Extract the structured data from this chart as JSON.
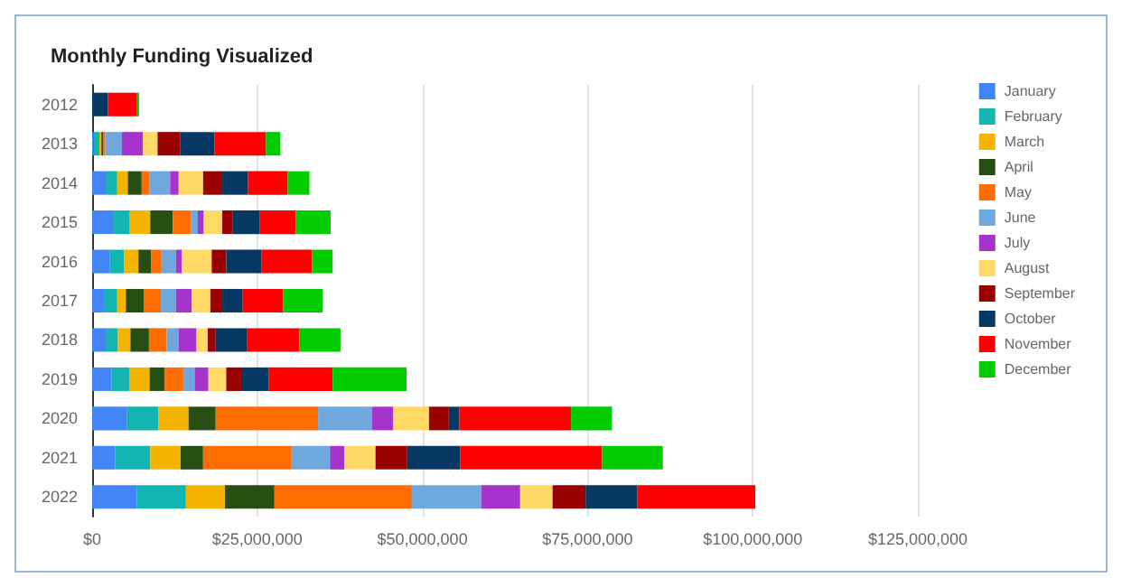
{
  "chart_data": {
    "type": "bar",
    "title": "Monthly Funding Visualized",
    "orientation": "horizontal",
    "stacked": true,
    "categories": [
      "2012",
      "2013",
      "2014",
      "2015",
      "2016",
      "2017",
      "2018",
      "2019",
      "2020",
      "2021",
      "2022"
    ],
    "series": [
      {
        "name": "January",
        "color": "#4285f4",
        "values": [
          0,
          200000,
          2200000,
          3300000,
          2700000,
          1900000,
          2200000,
          2900000,
          5300000,
          3500000,
          6800000
        ]
      },
      {
        "name": "February",
        "color": "#12b5b0",
        "values": [
          0,
          900000,
          1600000,
          2400000,
          2100000,
          1900000,
          1700000,
          2700000,
          4700000,
          5300000,
          7400000
        ]
      },
      {
        "name": "March",
        "color": "#f4b400",
        "values": [
          0,
          300000,
          1600000,
          3100000,
          2200000,
          1300000,
          1900000,
          3100000,
          4600000,
          4600000,
          5900000
        ]
      },
      {
        "name": "April",
        "color": "#274e13",
        "values": [
          0,
          300000,
          2100000,
          3400000,
          1900000,
          2700000,
          2800000,
          2300000,
          4100000,
          3400000,
          7500000
        ]
      },
      {
        "name": "May",
        "color": "#ff6d01",
        "values": [
          0,
          300000,
          1200000,
          2800000,
          1600000,
          2600000,
          2700000,
          2800000,
          15500000,
          13400000,
          20800000
        ]
      },
      {
        "name": "June",
        "color": "#6fa8dc",
        "values": [
          0,
          2500000,
          3100000,
          1000000,
          2200000,
          2300000,
          1800000,
          1700000,
          8200000,
          5800000,
          10500000
        ]
      },
      {
        "name": "July",
        "color": "#a633cc",
        "values": [
          0,
          3200000,
          1300000,
          900000,
          900000,
          2400000,
          2700000,
          2100000,
          3200000,
          2200000,
          5900000
        ]
      },
      {
        "name": "August",
        "color": "#ffd966",
        "values": [
          0,
          2200000,
          3700000,
          2800000,
          4500000,
          2800000,
          1700000,
          2700000,
          5400000,
          4700000,
          4900000
        ]
      },
      {
        "name": "September",
        "color": "#990000",
        "values": [
          0,
          3400000,
          2900000,
          1600000,
          2200000,
          1800000,
          1200000,
          2400000,
          3000000,
          4800000,
          5000000
        ]
      },
      {
        "name": "October",
        "color": "#073763",
        "values": [
          2400000,
          5200000,
          3900000,
          4100000,
          5300000,
          3100000,
          4700000,
          4000000,
          1600000,
          8000000,
          7800000
        ]
      },
      {
        "name": "November",
        "color": "#ff0000",
        "values": [
          4300000,
          7800000,
          6000000,
          5400000,
          7700000,
          6100000,
          8000000,
          9700000,
          16900000,
          21500000,
          17900000
        ]
      },
      {
        "name": "December",
        "color": "#00cc00",
        "values": [
          400000,
          2200000,
          3300000,
          5300000,
          3100000,
          6000000,
          6200000,
          11200000,
          6200000,
          9200000,
          0
        ]
      }
    ],
    "xlim": [
      0,
      125000000
    ],
    "xticks": [
      {
        "value": 0,
        "label": "$0"
      },
      {
        "value": 25000000,
        "label": "$25,000,000"
      },
      {
        "value": 50000000,
        "label": "$50,000,000"
      },
      {
        "value": 75000000,
        "label": "$75,000,000"
      },
      {
        "value": 100000000,
        "label": "$100,000,000"
      },
      {
        "value": 125000000,
        "label": "$125,000,000"
      }
    ],
    "grid": "x",
    "legend": "right"
  }
}
